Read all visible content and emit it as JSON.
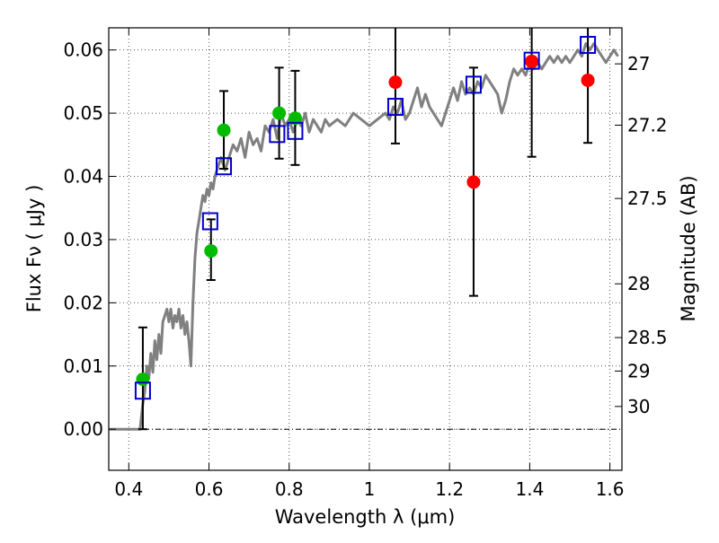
{
  "chart_data": {
    "type": "scatter",
    "xlabel": "Wavelength  λ (μm)",
    "ylabel": "Flux  Fν  ( μJy )",
    "y2label": "Magnitude (AB)",
    "xlim": [
      0.35,
      1.63
    ],
    "ylim": [
      -0.0065,
      0.0635
    ],
    "xticks": [
      0.4,
      0.6,
      0.8,
      1.0,
      1.2,
      1.4,
      1.6
    ],
    "xtick_labels": [
      "0.4",
      "0.6",
      "0.8",
      "1",
      "1.2",
      "1.4",
      "1.6"
    ],
    "yticks": [
      0.0,
      0.01,
      0.02,
      0.03,
      0.04,
      0.05,
      0.06
    ],
    "ytick_labels": [
      "0.00",
      "0.01",
      "0.02",
      "0.03",
      "0.04",
      "0.05",
      "0.06"
    ],
    "mag_ticks": [
      {
        "label": "27",
        "flux": 0.0578
      },
      {
        "label": "27.2",
        "flux": 0.0481
      },
      {
        "label": "27.5",
        "flux": 0.0365
      },
      {
        "label": "28",
        "flux": 0.023
      },
      {
        "label": "28.5",
        "flux": 0.0145
      },
      {
        "label": "29",
        "flux": 0.0092
      },
      {
        "label": "30",
        "flux": 0.0036
      }
    ],
    "grid": true,
    "colors": {
      "model": "#808080",
      "green": "#00bb00",
      "red": "#ff0000",
      "square": "#0000cc",
      "errorbar": "#000000",
      "zero_line": "#000000"
    },
    "series": [
      {
        "name": "model spectrum",
        "kind": "line",
        "x": [
          0.35,
          0.42,
          0.428,
          0.435,
          0.44,
          0.445,
          0.45,
          0.455,
          0.46,
          0.465,
          0.47,
          0.475,
          0.48,
          0.485,
          0.49,
          0.495,
          0.5,
          0.505,
          0.51,
          0.515,
          0.52,
          0.525,
          0.53,
          0.535,
          0.54,
          0.545,
          0.55,
          0.555,
          0.56,
          0.565,
          0.57,
          0.575,
          0.58,
          0.585,
          0.59,
          0.595,
          0.6,
          0.605,
          0.61,
          0.615,
          0.62,
          0.625,
          0.63,
          0.635,
          0.64,
          0.65,
          0.66,
          0.67,
          0.68,
          0.69,
          0.7,
          0.71,
          0.72,
          0.73,
          0.74,
          0.75,
          0.76,
          0.77,
          0.78,
          0.79,
          0.8,
          0.81,
          0.82,
          0.83,
          0.84,
          0.85,
          0.86,
          0.87,
          0.88,
          0.89,
          0.9,
          0.92,
          0.94,
          0.96,
          0.98,
          1.0,
          1.02,
          1.04,
          1.05,
          1.06,
          1.07,
          1.08,
          1.09,
          1.1,
          1.11,
          1.12,
          1.13,
          1.14,
          1.15,
          1.16,
          1.17,
          1.18,
          1.19,
          1.2,
          1.21,
          1.22,
          1.23,
          1.24,
          1.25,
          1.26,
          1.27,
          1.28,
          1.29,
          1.3,
          1.31,
          1.32,
          1.33,
          1.34,
          1.35,
          1.36,
          1.37,
          1.38,
          1.39,
          1.4,
          1.41,
          1.42,
          1.43,
          1.44,
          1.45,
          1.46,
          1.47,
          1.48,
          1.49,
          1.5,
          1.51,
          1.52,
          1.53,
          1.54,
          1.55,
          1.56,
          1.57,
          1.58,
          1.59,
          1.6,
          1.61,
          1.62
        ],
        "y": [
          0.0,
          0.0,
          0.0,
          0.004,
          0.006,
          0.01,
          0.008,
          0.012,
          0.009,
          0.014,
          0.011,
          0.015,
          0.012,
          0.017,
          0.018,
          0.019,
          0.017,
          0.019,
          0.016,
          0.018,
          0.017,
          0.019,
          0.016,
          0.018,
          0.015,
          0.017,
          0.014,
          0.01,
          0.02,
          0.027,
          0.031,
          0.033,
          0.035,
          0.037,
          0.036,
          0.038,
          0.037,
          0.039,
          0.038,
          0.04,
          0.041,
          0.042,
          0.043,
          0.042,
          0.041,
          0.043,
          0.045,
          0.044,
          0.046,
          0.043,
          0.047,
          0.045,
          0.046,
          0.044,
          0.048,
          0.047,
          0.049,
          0.046,
          0.05,
          0.048,
          0.049,
          0.047,
          0.049,
          0.048,
          0.05,
          0.047,
          0.049,
          0.048,
          0.047,
          0.049,
          0.048,
          0.049,
          0.048,
          0.05,
          0.049,
          0.048,
          0.049,
          0.05,
          0.049,
          0.051,
          0.05,
          0.052,
          0.049,
          0.05,
          0.052,
          0.054,
          0.051,
          0.053,
          0.051,
          0.05,
          0.049,
          0.048,
          0.05,
          0.052,
          0.054,
          0.052,
          0.055,
          0.053,
          0.054,
          0.053,
          0.055,
          0.054,
          0.056,
          0.055,
          0.054,
          0.053,
          0.05,
          0.052,
          0.055,
          0.057,
          0.056,
          0.057,
          0.056,
          0.058,
          0.057,
          0.058,
          0.057,
          0.058,
          0.059,
          0.058,
          0.059,
          0.058,
          0.059,
          0.058,
          0.059,
          0.06,
          0.059,
          0.061,
          0.06,
          0.061,
          0.06,
          0.059,
          0.058,
          0.059,
          0.06,
          0.059
        ]
      },
      {
        "name": "green observed points",
        "kind": "scatter",
        "x": [
          0.435,
          0.605,
          0.637,
          0.775,
          0.815
        ],
        "y": [
          0.0079,
          0.0282,
          0.0473,
          0.05,
          0.0492
        ],
        "yerr_low": [
          null,
          0.0236,
          null,
          0.0428,
          0.0418
        ],
        "yerr_high": [
          null,
          0.0332,
          null,
          0.0572,
          0.0567
        ]
      },
      {
        "name": "red observed points",
        "kind": "scatter",
        "x": [
          1.065,
          1.26,
          1.405,
          1.545
        ],
        "y": [
          0.0549,
          0.0391,
          0.0582,
          0.0552
        ],
        "yerr_low": [
          0.0452,
          0.0211,
          0.0431,
          0.0453
        ],
        "yerr_high": [
          0.0645,
          0.0572,
          0.0645,
          0.0645
        ]
      },
      {
        "name": "blue model squares",
        "kind": "scatter",
        "x": [
          0.435,
          0.603,
          0.637,
          0.77,
          0.815,
          1.065,
          1.26,
          1.405,
          1.545
        ],
        "y": [
          0.0061,
          0.0329,
          0.0416,
          0.0467,
          0.0472,
          0.051,
          0.0545,
          0.0583,
          0.0608
        ]
      },
      {
        "name": "model error bars",
        "kind": "errorbar",
        "x": [
          0.435,
          0.637
        ],
        "yerr_low": [
          0.0,
          0.0412
        ],
        "yerr_high": [
          0.0161,
          0.0535
        ]
      }
    ]
  }
}
